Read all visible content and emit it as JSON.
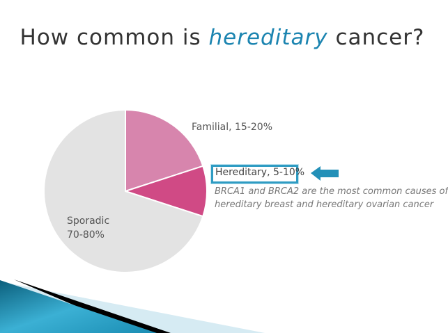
{
  "title": {
    "prefix": "How common is ",
    "highlight": "hereditary",
    "suffix": " cancer?"
  },
  "note": {
    "line1": "BRCA1 and BRCA2 are the most common causes of",
    "line2": "hereditary breast and hereditary ovarian cancer"
  },
  "chart_data": {
    "type": "pie",
    "slices": [
      {
        "label": "Familial, 15-20%",
        "value": 20,
        "color": "#d785ad"
      },
      {
        "label": "Hereditary, 5-10%",
        "value": 10,
        "color": "#d04a85"
      },
      {
        "label": "Sporadic 70-80%",
        "value": 70,
        "color": "#e3e3e3"
      }
    ],
    "start_angle": "top, clockwise",
    "highlighted": "Hereditary, 5-10%"
  },
  "colors": {
    "accent": "#2f9cc3",
    "title": "#333333"
  }
}
